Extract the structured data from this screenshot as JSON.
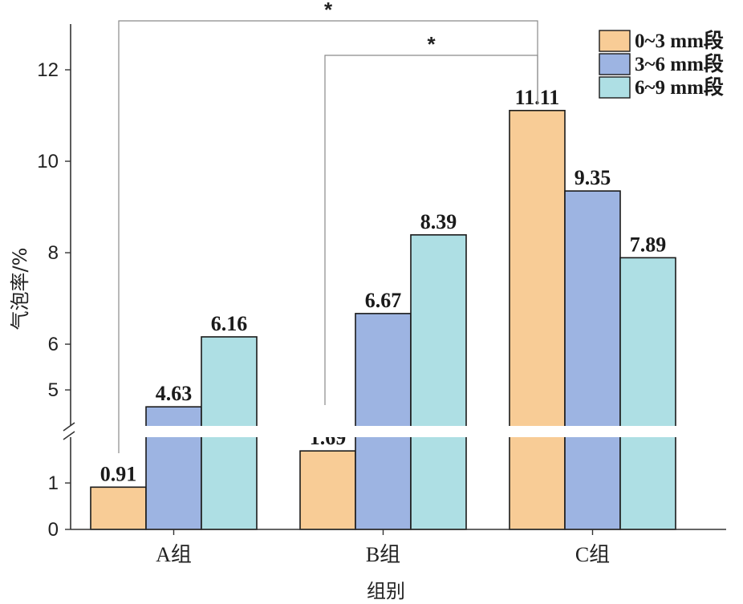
{
  "chart_data": {
    "type": "bar",
    "categories": [
      "A组",
      "B组",
      "C组"
    ],
    "series": [
      {
        "name": "0~3 mm段",
        "color": "#F8CC96",
        "values": [
          0.91,
          1.69,
          11.11
        ]
      },
      {
        "name": "3~6 mm段",
        "color": "#9DB4E2",
        "values": [
          4.63,
          6.67,
          9.35
        ]
      },
      {
        "name": "6~9 mm段",
        "color": "#AEDFE4",
        "values": [
          6.16,
          8.39,
          7.89
        ]
      }
    ],
    "data_labels": [
      [
        "0.91",
        "1.69",
        "11.11"
      ],
      [
        "4.63",
        "6.67",
        "9.35"
      ],
      [
        "6.16",
        "8.39",
        "7.89"
      ]
    ],
    "xlabel": "组别",
    "ylabel": "气泡率/%",
    "y_axis": {
      "broken": true,
      "lower_range": [
        0,
        1.9
      ],
      "upper_range": [
        4.3,
        13
      ],
      "ticks": [
        0,
        1,
        5,
        6,
        8,
        10,
        12
      ]
    },
    "legend_position": "top-right",
    "significance": [
      {
        "from": "A组 0~3 mm段",
        "to": "C组 0~3 mm段",
        "label": "*"
      },
      {
        "from": "B组 0~3 mm段",
        "to": "C组 0~3 mm段",
        "label": "*"
      }
    ],
    "grid": false
  }
}
